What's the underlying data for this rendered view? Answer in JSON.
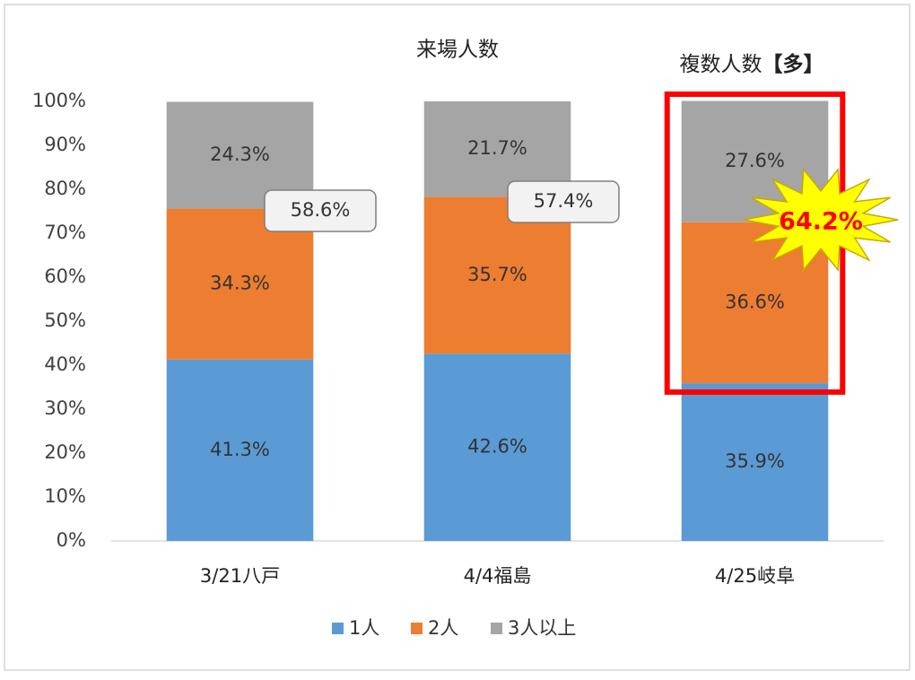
{
  "chart_data": {
    "type": "stacked_bar_percent",
    "title": "来場人数",
    "subtitle": "複数人数",
    "subtitle_emphasis": "【多】",
    "categories": [
      "3/21八戸",
      "4/4福島",
      "4/25岐阜"
    ],
    "series": [
      {
        "name": "1人",
        "color": "#5b9bd5",
        "values": [
          41.3,
          42.6,
          35.9
        ],
        "value_labels": [
          "41.3%",
          "42.6%",
          "35.9%"
        ]
      },
      {
        "name": "2人",
        "color": "#ed7d31",
        "values": [
          34.3,
          35.7,
          36.6
        ],
        "value_labels": [
          "34.3%",
          "35.7%",
          "36.6%"
        ]
      },
      {
        "name": "3人以上",
        "color": "#a5a5a5",
        "values": [
          24.3,
          21.7,
          27.6
        ],
        "value_labels": [
          "24.3%",
          "21.7%",
          "27.6%"
        ]
      }
    ],
    "annotations": [
      "58.6%",
      "57.4%",
      "64.2%"
    ],
    "ylim": [
      0,
      100
    ],
    "yticks": [
      {
        "value": 0,
        "label": "0%"
      },
      {
        "value": 10,
        "label": "10%"
      },
      {
        "value": 20,
        "label": "20%"
      },
      {
        "value": 30,
        "label": "30%"
      },
      {
        "value": 40,
        "label": "40%"
      },
      {
        "value": 50,
        "label": "50%"
      },
      {
        "value": 60,
        "label": "60%"
      },
      {
        "value": 70,
        "label": "70%"
      },
      {
        "value": 80,
        "label": "80%"
      },
      {
        "value": 90,
        "label": "90%"
      },
      {
        "value": 100,
        "label": "100%"
      }
    ],
    "legend": "bottom"
  }
}
